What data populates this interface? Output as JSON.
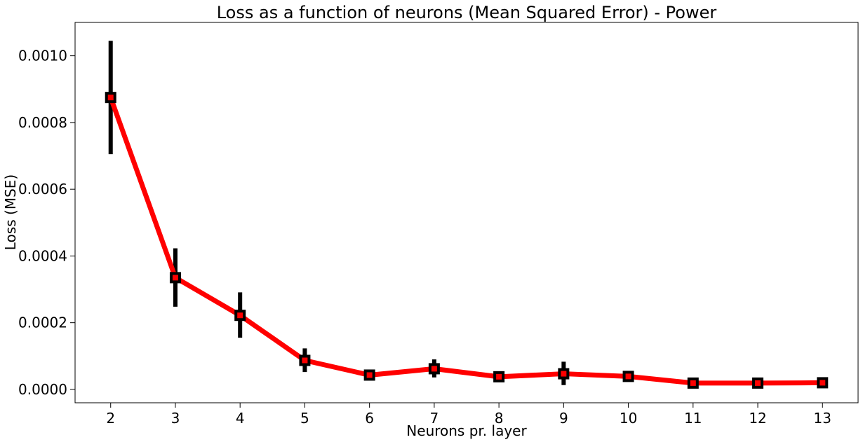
{
  "chart_data": {
    "type": "line",
    "title": "Loss as a function of neurons (Mean Squared Error) - Power",
    "xlabel": "Neurons pr. layer",
    "ylabel": "Loss (MSE)",
    "x": [
      2,
      3,
      4,
      5,
      6,
      7,
      8,
      9,
      10,
      11,
      12,
      13
    ],
    "xlim": [
      1.45,
      13.55
    ],
    "ylim": [
      -4e-05,
      0.0011
    ],
    "y_ticks": [
      0.0,
      0.0002,
      0.0004,
      0.0006,
      0.0008,
      0.001
    ],
    "y_tick_labels": [
      "0.0000",
      "0.0002",
      "0.0004",
      "0.0006",
      "0.0008",
      "0.0010"
    ],
    "x_tick_labels": [
      "2",
      "3",
      "4",
      "5",
      "6",
      "7",
      "8",
      "9",
      "10",
      "11",
      "12",
      "13"
    ],
    "grid": false,
    "series": [
      {
        "values": [
          0.000875,
          0.000335,
          0.000222,
          8.7e-05,
          4.3e-05,
          6.2e-05,
          3.8e-05,
          4.7e-05,
          3.9e-05,
          1.9e-05,
          1.9e-05,
          2e-05
        ],
        "error_low": [
          0.000705,
          0.000248,
          0.000155,
          5.2e-05,
          4e-05,
          3.6e-05,
          3.4e-05,
          1.3e-05,
          3e-05,
          1.7e-05,
          1.7e-05,
          1.8e-05
        ],
        "error_high": [
          0.001045,
          0.000423,
          0.000291,
          0.000123,
          4.6e-05,
          9e-05,
          4.2e-05,
          8.3e-05,
          4.8e-05,
          2.1e-05,
          2.1e-05,
          2.2e-05
        ],
        "line_color": "#ff0000",
        "marker_edge_color": "#000000",
        "marker": "square",
        "errorbar_color": "#000000"
      }
    ]
  }
}
